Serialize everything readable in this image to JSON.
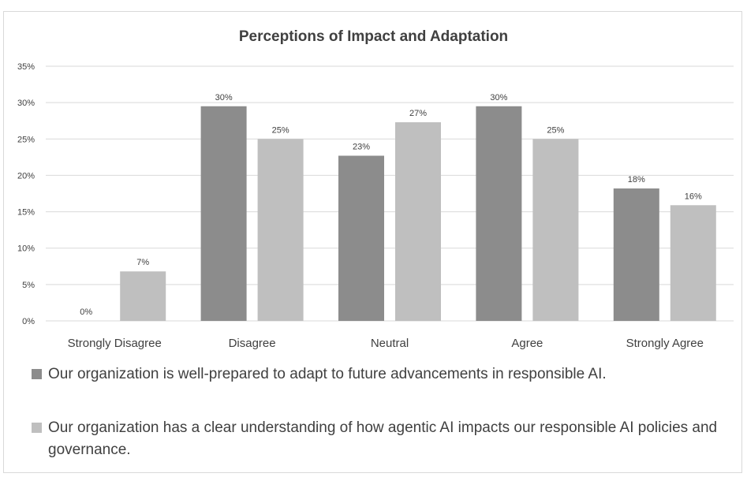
{
  "colors": {
    "series1": "#8c8c8c",
    "series2": "#bfbfbf",
    "grid": "#d9d9d9",
    "text": "#404040"
  },
  "chart_data": {
    "type": "bar",
    "title": "Perceptions of Impact and Adaptation",
    "xlabel": "",
    "ylabel": "",
    "categories": [
      "Strongly Disagree",
      "Disagree",
      "Neutral",
      "Agree",
      "Strongly Agree"
    ],
    "series": [
      {
        "name": "Our organization is well-prepared to adapt to future advancements in responsible AI.",
        "values": [
          0,
          29.5,
          22.7,
          29.5,
          18.2
        ],
        "labels": [
          "0%",
          "30%",
          "23%",
          "30%",
          "18%"
        ]
      },
      {
        "name": "Our organization has a clear understanding of how agentic AI impacts our responsible AI policies and governance.",
        "values": [
          6.8,
          25,
          27.3,
          25,
          15.9
        ],
        "labels": [
          "7%",
          "25%",
          "27%",
          "25%",
          "16%"
        ]
      }
    ],
    "ylim": [
      0,
      35
    ],
    "yticks": [
      "0%",
      "5%",
      "10%",
      "15%",
      "20%",
      "25%",
      "30%",
      "35%"
    ],
    "grid": true,
    "legend_position": "bottom"
  }
}
